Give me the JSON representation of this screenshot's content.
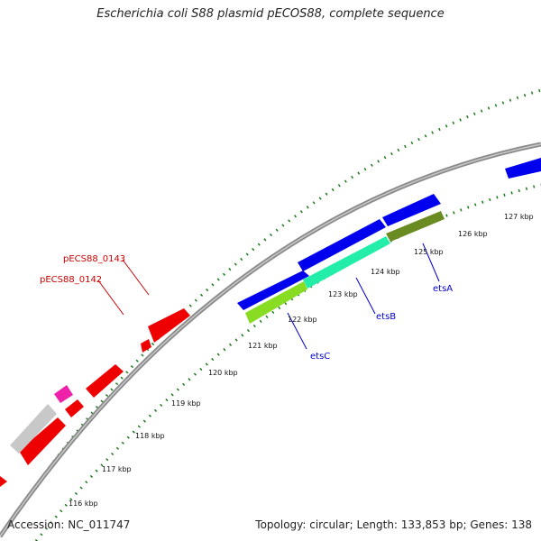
{
  "title": "Escherichia coli S88 plasmid pECOS88, complete sequence",
  "footer": {
    "accession": "Accession: NC_011747",
    "summary": "Topology: circular; Length: 133,853 bp; Genes: 138"
  },
  "colors": {
    "backbone": "#8a8a8a",
    "tick": "#1a7a1a",
    "forward_gene": "#0000ee",
    "reverse_gene": "#ee0000",
    "pink_gene": "#ee22aa",
    "gray_gene": "#c8c8c8",
    "label_blue": "#0000cc",
    "label_red": "#cc0000"
  },
  "scale_labels": [
    "116 kbp",
    "117 kbp",
    "118 kbp",
    "119 kbp",
    "120 kbp",
    "121 kbp",
    "122 kbp",
    "123 kbp",
    "124 kbp",
    "125 kbp",
    "126 kbp",
    "127 kbp"
  ],
  "gene_labels": [
    {
      "text": "pECS88_0143",
      "color": "red"
    },
    {
      "text": "pECS88_0142",
      "color": "red"
    },
    {
      "text": "etsA",
      "color": "blue"
    },
    {
      "text": "etsB",
      "color": "blue"
    },
    {
      "text": "etsC",
      "color": "blue"
    }
  ]
}
